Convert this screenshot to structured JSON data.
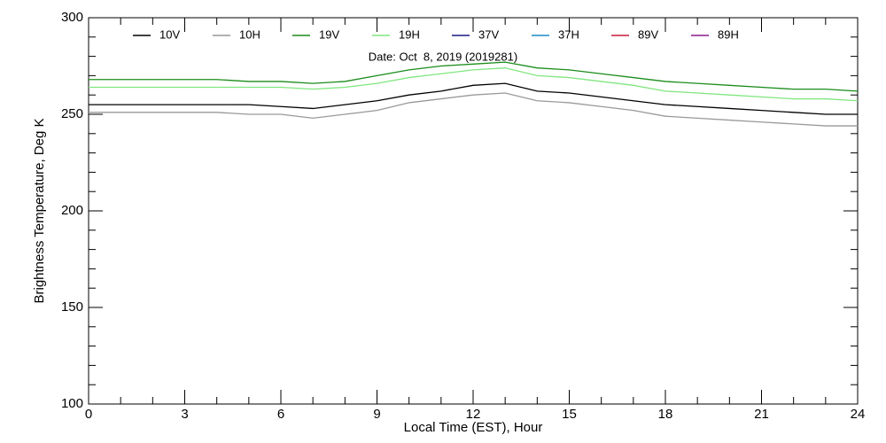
{
  "chart_data": {
    "type": "line",
    "annotation": "Date: Oct  8, 2019 (2019281)",
    "xlabel": "Local Time (EST), Hour",
    "ylabel": "Brightness Temperature, Deg K",
    "x": [
      0,
      1,
      2,
      3,
      4,
      5,
      6,
      7,
      8,
      9,
      10,
      11,
      12,
      13,
      14,
      15,
      16,
      17,
      18,
      19,
      20,
      21,
      22,
      23,
      24
    ],
    "xlim": [
      0,
      24
    ],
    "xticks": [
      0,
      3,
      6,
      9,
      12,
      15,
      18,
      21,
      24
    ],
    "ylim": [
      100,
      300
    ],
    "yticks": [
      100,
      150,
      200,
      250,
      300
    ],
    "series": [
      {
        "name": "10V",
        "color": "#000000",
        "values": [
          255,
          255,
          255,
          255,
          255,
          255,
          254,
          253,
          255,
          257,
          260,
          262,
          265,
          266,
          262,
          261,
          259,
          257,
          255,
          254,
          253,
          252,
          251,
          250,
          250
        ]
      },
      {
        "name": "10H",
        "color": "#999999",
        "values": [
          251,
          251,
          251,
          251,
          251,
          250,
          250,
          248,
          250,
          252,
          256,
          258,
          260,
          261,
          257,
          256,
          254,
          252,
          249,
          248,
          247,
          246,
          245,
          244,
          244
        ]
      },
      {
        "name": "19V",
        "color": "#1a8c1a",
        "values": [
          268,
          268,
          268,
          268,
          268,
          267,
          267,
          266,
          267,
          270,
          273,
          275,
          276,
          277,
          274,
          273,
          271,
          269,
          267,
          266,
          265,
          264,
          263,
          263,
          262
        ]
      },
      {
        "name": "19H",
        "color": "#80e680",
        "values": [
          264,
          264,
          264,
          264,
          264,
          264,
          264,
          263,
          264,
          266,
          269,
          271,
          273,
          274,
          270,
          269,
          267,
          265,
          262,
          261,
          260,
          259,
          258,
          258,
          257
        ]
      },
      {
        "name": "37V",
        "color": "#1a1a80",
        "values": [
          null,
          null,
          null,
          null,
          null,
          null,
          null,
          null,
          null,
          null,
          null,
          null,
          null,
          null,
          null,
          null,
          null,
          null,
          null,
          null,
          null,
          null,
          null,
          null,
          null
        ]
      },
      {
        "name": "37H",
        "color": "#1a8cc8",
        "values": [
          null,
          null,
          null,
          null,
          null,
          null,
          null,
          null,
          null,
          null,
          null,
          null,
          null,
          null,
          null,
          null,
          null,
          null,
          null,
          null,
          null,
          null,
          null,
          null,
          null
        ]
      },
      {
        "name": "89V",
        "color": "#c81a3a",
        "values": [
          null,
          null,
          null,
          null,
          null,
          null,
          null,
          null,
          null,
          null,
          null,
          null,
          null,
          null,
          null,
          null,
          null,
          null,
          null,
          null,
          null,
          null,
          null,
          null,
          null
        ]
      },
      {
        "name": "89H",
        "color": "#8c1a8c",
        "values": [
          null,
          null,
          null,
          null,
          null,
          null,
          null,
          null,
          null,
          null,
          null,
          null,
          null,
          null,
          null,
          null,
          null,
          null,
          null,
          null,
          null,
          null,
          null,
          null,
          null
        ]
      }
    ]
  }
}
